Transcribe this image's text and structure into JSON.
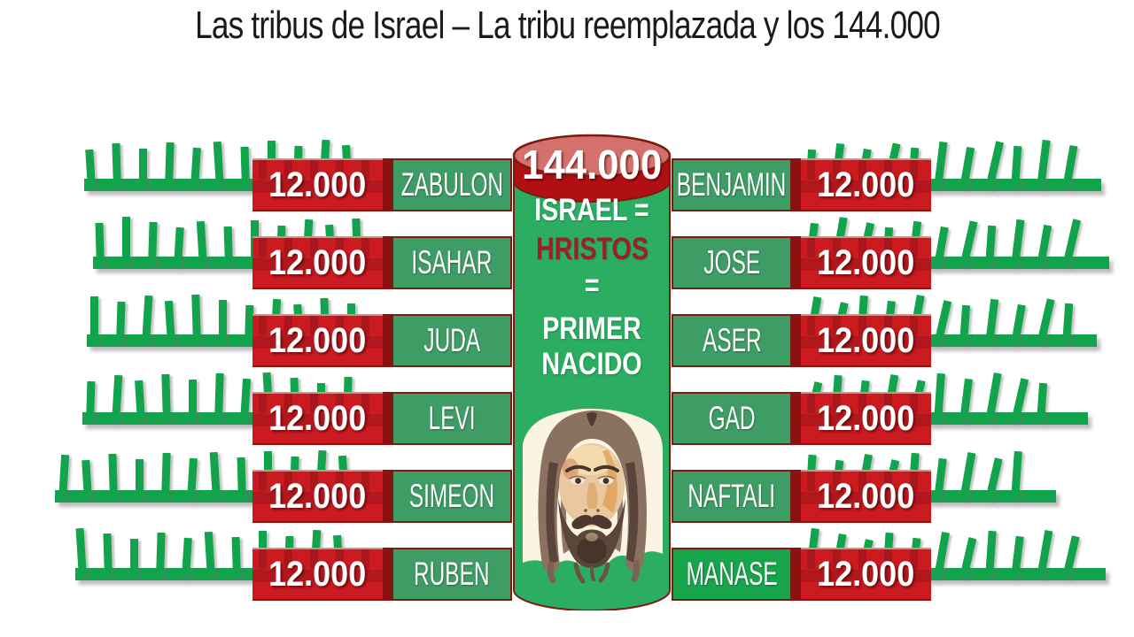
{
  "title": "Las tribus de Israel – La tribu reemplazada y los 144.000",
  "cylinder": {
    "value": "144.000",
    "lines": [
      {
        "text": "ISRAEL =",
        "style": "white"
      },
      {
        "text": "HRISTOS",
        "style": "red"
      },
      {
        "text": "=",
        "style": "white"
      },
      {
        "text": "PRIMER",
        "style": "white"
      },
      {
        "text": "NACIDO",
        "style": "white"
      }
    ],
    "portrait_icon": "jesus-face-watercolor"
  },
  "left_rows": [
    {
      "value": "12.000",
      "tribe": "ZABULON"
    },
    {
      "value": "12.000",
      "tribe": "ISAHAR"
    },
    {
      "value": "12.000",
      "tribe": "JUDA"
    },
    {
      "value": "12.000",
      "tribe": "LEVI"
    },
    {
      "value": "12.000",
      "tribe": "SIMEON"
    },
    {
      "value": "12.000",
      "tribe": "RUBEN"
    }
  ],
  "right_rows": [
    {
      "tribe": "BENJAMIN",
      "value": "12.000",
      "highlight": false
    },
    {
      "tribe": "JOSE",
      "value": "12.000",
      "highlight": false
    },
    {
      "tribe": "ASER",
      "value": "12.000",
      "highlight": false
    },
    {
      "tribe": "GAD",
      "value": "12.000",
      "highlight": false
    },
    {
      "tribe": "NAFTALI",
      "value": "12.000",
      "highlight": false
    },
    {
      "tribe": "MANASE",
      "value": "12.000",
      "highlight": true
    }
  ],
  "colors": {
    "comb_green": "#12A44C",
    "tribe_green": "#3E9D65",
    "highlight_green": "#17A44B",
    "cylinder_green": "#2BAD62",
    "value_red": "#CB1A20",
    "band_red": "#B00F14",
    "cap_salmon": "#D4716D",
    "outline_maroon": "#7E1B10",
    "hristos_red": "#9C2127",
    "title_black": "#1A1A1A"
  },
  "decor_combs": {
    "left": {
      "starts": [
        95,
        105,
        98,
        93,
        62,
        85
      ],
      "end": 440
    },
    "right": {
      "start": 905,
      "ends": [
        1243,
        1252,
        1238,
        1228,
        1192,
        1248
      ]
    }
  }
}
